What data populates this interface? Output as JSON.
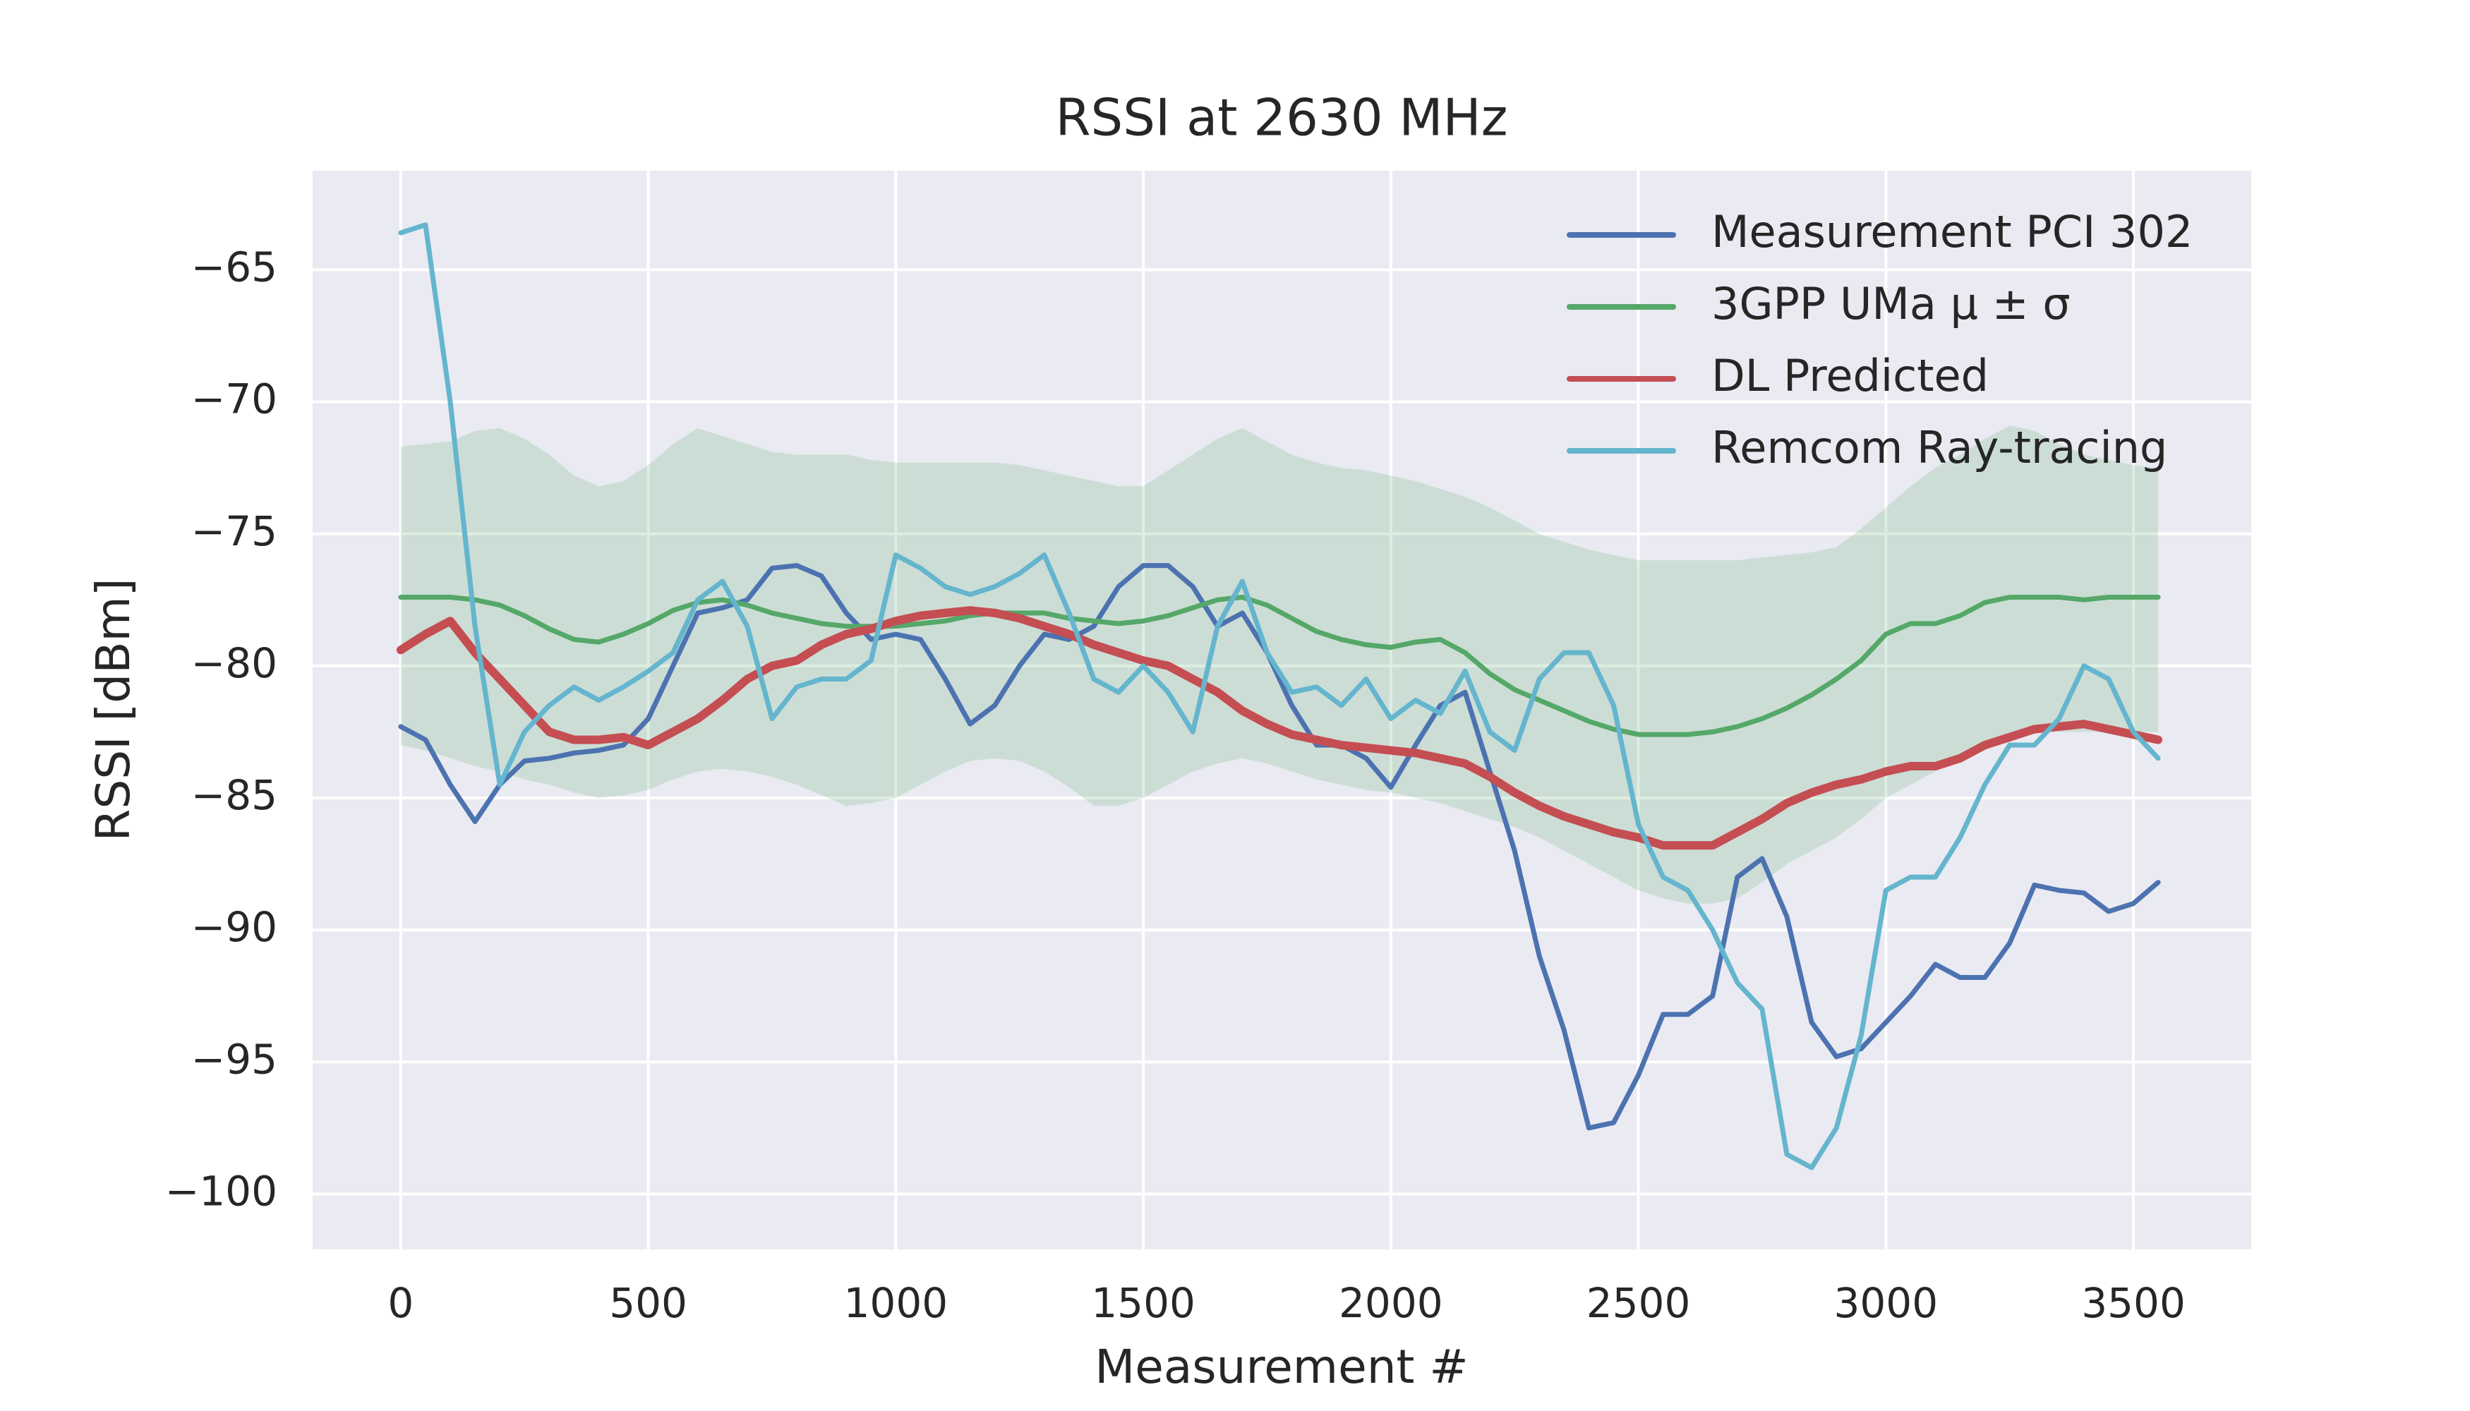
{
  "chart_data": {
    "type": "line",
    "title": "RSSI at 2630 MHz",
    "xlabel": "Measurement #",
    "ylabel": "RSSI [dBm]",
    "xlim": [
      -178,
      3738
    ],
    "ylim": [
      -102.1,
      -61.25
    ],
    "xticks": [
      0,
      500,
      1000,
      1500,
      2000,
      2500,
      3000,
      3500
    ],
    "yticks": [
      {
        "value": -65,
        "label": "−65"
      },
      {
        "value": -70,
        "label": "−70"
      },
      {
        "value": -75,
        "label": "−75"
      },
      {
        "value": -80,
        "label": "−80"
      },
      {
        "value": -85,
        "label": "−85"
      },
      {
        "value": -90,
        "label": "−90"
      },
      {
        "value": -95,
        "label": "−95"
      },
      {
        "value": -100,
        "label": "−100"
      }
    ],
    "grid": true,
    "legend": "upper right",
    "x": [
      0,
      50,
      100,
      150,
      200,
      250,
      300,
      350,
      400,
      450,
      500,
      550,
      600,
      650,
      700,
      750,
      800,
      850,
      900,
      950,
      1000,
      1050,
      1100,
      1150,
      1200,
      1250,
      1300,
      1350,
      1400,
      1450,
      1500,
      1550,
      1600,
      1650,
      1700,
      1750,
      1800,
      1850,
      1900,
      1950,
      2000,
      2050,
      2100,
      2150,
      2200,
      2250,
      2300,
      2350,
      2400,
      2450,
      2500,
      2550,
      2600,
      2650,
      2700,
      2750,
      2800,
      2850,
      2900,
      2950,
      3000,
      3050,
      3100,
      3150,
      3200,
      3250,
      3300,
      3350,
      3400,
      3450,
      3500,
      3550
    ],
    "series": [
      {
        "name": "Measurement PCI 302",
        "color": "#4c72b0",
        "values": [
          -82.3,
          -82.8,
          -84.5,
          -85.9,
          -84.5,
          -83.6,
          -83.5,
          -83.3,
          -83.2,
          -83,
          -82,
          -80,
          -78,
          -77.8,
          -77.5,
          -76.3,
          -76.2,
          -76.6,
          -78,
          -79,
          -78.8,
          -79,
          -80.5,
          -82.2,
          -81.5,
          -80,
          -78.8,
          -79,
          -78.5,
          -77,
          -76.2,
          -76.2,
          -77,
          -78.5,
          -78,
          -79.5,
          -81.5,
          -83,
          -83,
          -83.5,
          -84.6,
          -83,
          -81.5,
          -81,
          -84,
          -87,
          -91,
          -93.8,
          -97.5,
          -97.3,
          -95.5,
          -93.2,
          -93.2,
          -92.5,
          -88,
          -87.3,
          -89.5,
          -93.5,
          -94.8,
          -94.5,
          -93.5,
          -92.5,
          -91.3,
          -91.8,
          -91.8,
          -90.5,
          -88.3,
          -88.5,
          -88.6,
          -89.3,
          -89,
          -88.2
        ]
      },
      {
        "name": "3GPP UMa μ ± σ",
        "color": "#55a868",
        "values": [
          -77.4,
          -77.4,
          -77.4,
          -77.5,
          -77.7,
          -78.1,
          -78.6,
          -79,
          -79.1,
          -78.8,
          -78.4,
          -77.9,
          -77.6,
          -77.5,
          -77.7,
          -78,
          -78.2,
          -78.4,
          -78.5,
          -78.5,
          -78.5,
          -78.4,
          -78.3,
          -78.1,
          -78,
          -78,
          -78,
          -78.2,
          -78.3,
          -78.4,
          -78.3,
          -78.1,
          -77.8,
          -77.5,
          -77.4,
          -77.7,
          -78.2,
          -78.7,
          -79,
          -79.2,
          -79.3,
          -79.1,
          -79,
          -79.5,
          -80.3,
          -80.9,
          -81.3,
          -81.7,
          -82.1,
          -82.4,
          -82.6,
          -82.6,
          -82.6,
          -82.5,
          -82.3,
          -82,
          -81.6,
          -81.1,
          -80.5,
          -79.8,
          -78.8,
          -78.4,
          -78.4,
          -78.1,
          -77.6,
          -77.4,
          -77.4,
          -77.4,
          -77.5,
          -77.4,
          -77.4,
          -77.4
        ],
        "band_upper": [
          -71.7,
          -71.6,
          -71.5,
          -71.1,
          -71,
          -71.4,
          -72,
          -72.8,
          -73.2,
          -73,
          -72.4,
          -71.6,
          -71,
          -71.3,
          -71.6,
          -71.9,
          -72,
          -72,
          -72,
          -72.2,
          -72.3,
          -72.3,
          -72.3,
          -72.3,
          -72.3,
          -72.4,
          -72.6,
          -72.8,
          -73,
          -73.2,
          -73.2,
          -72.6,
          -72,
          -71.4,
          -71,
          -71.5,
          -72,
          -72.3,
          -72.5,
          -72.6,
          -72.8,
          -73,
          -73.3,
          -73.6,
          -74,
          -74.5,
          -75,
          -75.3,
          -75.6,
          -75.8,
          -76,
          -76,
          -76,
          -76,
          -76,
          -75.9,
          -75.8,
          -75.7,
          -75.5,
          -74.8,
          -74,
          -73.2,
          -72.5,
          -72,
          -71.4,
          -70.9,
          -71.1,
          -71.6,
          -72,
          -72.2,
          -72.4,
          -72.5
        ],
        "band_lower": [
          -83,
          -83.2,
          -83.5,
          -83.8,
          -84,
          -84.3,
          -84.5,
          -84.8,
          -85,
          -84.9,
          -84.7,
          -84.3,
          -84,
          -83.9,
          -84,
          -84.2,
          -84.5,
          -84.9,
          -85.3,
          -85.2,
          -85,
          -84.5,
          -84,
          -83.6,
          -83.5,
          -83.6,
          -84,
          -84.6,
          -85.3,
          -85.3,
          -85,
          -84.5,
          -84,
          -83.7,
          -83.5,
          -83.7,
          -84,
          -84.3,
          -84.5,
          -84.7,
          -84.8,
          -85,
          -85.2,
          -85.5,
          -85.8,
          -86.1,
          -86.5,
          -87,
          -87.5,
          -88,
          -88.5,
          -88.8,
          -89,
          -89,
          -88.8,
          -88.2,
          -87.5,
          -87,
          -86.5,
          -85.8,
          -85,
          -84.5,
          -84,
          -83.5,
          -83,
          -82.8,
          -82.5,
          -82.5,
          -82.5,
          -82.5,
          -82.5,
          -82.5
        ]
      },
      {
        "name": "DL Predicted",
        "color": "#c44e52",
        "values": [
          -79.4,
          -78.8,
          -78.3,
          -79.5,
          -80.5,
          -81.5,
          -82.5,
          -82.8,
          -82.8,
          -82.7,
          -83,
          -82.5,
          -82,
          -81.3,
          -80.5,
          -80,
          -79.8,
          -79.2,
          -78.8,
          -78.6,
          -78.3,
          -78.1,
          -78,
          -77.9,
          -78,
          -78.2,
          -78.5,
          -78.8,
          -79.2,
          -79.5,
          -79.8,
          -80,
          -80.5,
          -81,
          -81.7,
          -82.2,
          -82.6,
          -82.8,
          -83,
          -83.1,
          -83.2,
          -83.3,
          -83.5,
          -83.7,
          -84.2,
          -84.8,
          -85.3,
          -85.7,
          -86,
          -86.3,
          -86.5,
          -86.8,
          -86.8,
          -86.8,
          -86.3,
          -85.8,
          -85.2,
          -84.8,
          -84.5,
          -84.3,
          -84,
          -83.8,
          -83.8,
          -83.5,
          -83,
          -82.7,
          -82.4,
          -82.3,
          -82.2,
          -82.4,
          -82.6,
          -82.8
        ]
      },
      {
        "name": "Remcom Ray-tracing",
        "color": "#64b5cd",
        "values": [
          -63.6,
          -63.3,
          -70,
          -78.5,
          -84.5,
          -82.5,
          -81.5,
          -80.8,
          -81.3,
          -80.8,
          -80.2,
          -79.5,
          -77.5,
          -76.8,
          -78.5,
          -82,
          -80.8,
          -80.5,
          -80.5,
          -79.8,
          -75.8,
          -76.3,
          -77,
          -77.3,
          -77,
          -76.5,
          -75.8,
          -78,
          -80.5,
          -81,
          -80,
          -81,
          -82.5,
          -78.5,
          -76.8,
          -79.5,
          -81,
          -80.8,
          -81.5,
          -80.5,
          -82,
          -81.3,
          -81.8,
          -80.2,
          -82.5,
          -83.2,
          -80.5,
          -79.5,
          -79.5,
          -81.5,
          -86,
          -88,
          -88.5,
          -90,
          -92,
          -93,
          -98.5,
          -99,
          -97.5,
          -94,
          -88.5,
          -88,
          -88,
          -86.5,
          -84.5,
          -83,
          -83,
          -82,
          -80,
          -80.5,
          -82.5,
          -83.5
        ]
      }
    ]
  }
}
